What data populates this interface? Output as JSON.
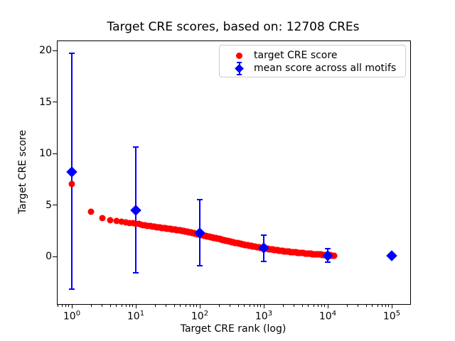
{
  "chart_data": {
    "type": "scatter",
    "title": "Target CRE scores, based on: 12708 CREs",
    "xlabel": "Target CRE rank (log)",
    "ylabel": "Target CRE score",
    "x_scale": "log",
    "xlim": [
      0.6,
      195000
    ],
    "ylim": [
      -4.6,
      20.9
    ],
    "x_tick_exponents": [
      0,
      1,
      2,
      3,
      4,
      5
    ],
    "y_ticks": [
      0,
      5,
      10,
      15,
      20
    ],
    "grid": false,
    "legend_position": "upper right",
    "colors": {
      "target": "#ff0000",
      "mean": "#0000ff",
      "text": "#000000",
      "legend_border": "#cccccc"
    },
    "n_points_total": 12708,
    "series": [
      {
        "name": "target CRE score",
        "type": "scatter",
        "marker": "circle",
        "color": "#ff0000",
        "note": "12708 points forming a dense decreasing band; sampled [rank, score] pairs, linear interp in log10(rank)",
        "points": [
          [
            1,
            7.03
          ],
          [
            2,
            4.37
          ],
          [
            3,
            3.74
          ],
          [
            4,
            3.52
          ],
          [
            5,
            3.43
          ],
          [
            6,
            3.36
          ],
          [
            7,
            3.31
          ],
          [
            8,
            3.26
          ],
          [
            9,
            3.22
          ],
          [
            10,
            3.18
          ],
          [
            12,
            3.1
          ],
          [
            15,
            3.0
          ],
          [
            20,
            2.88
          ],
          [
            30,
            2.72
          ],
          [
            40,
            2.61
          ],
          [
            50,
            2.52
          ],
          [
            70,
            2.35
          ],
          [
            100,
            2.12
          ],
          [
            140,
            1.92
          ],
          [
            200,
            1.7
          ],
          [
            300,
            1.44
          ],
          [
            400,
            1.27
          ],
          [
            500,
            1.14
          ],
          [
            700,
            0.96
          ],
          [
            1000,
            0.79
          ],
          [
            1500,
            0.63
          ],
          [
            2000,
            0.52
          ],
          [
            3000,
            0.4
          ],
          [
            4000,
            0.33
          ],
          [
            5000,
            0.27
          ],
          [
            7000,
            0.2
          ],
          [
            9000,
            0.15
          ],
          [
            11000,
            0.11
          ],
          [
            12708,
            0.07
          ]
        ]
      },
      {
        "name": "mean score across all motifs",
        "type": "errorbar",
        "marker": "diamond",
        "color": "#0000ff",
        "points": [
          {
            "x": 1,
            "y": 8.2,
            "lo": -3.2,
            "hi": 19.7
          },
          {
            "x": 10,
            "y": 4.5,
            "lo": -1.6,
            "hi": 10.6
          },
          {
            "x": 100,
            "y": 2.3,
            "lo": -0.9,
            "hi": 5.5
          },
          {
            "x": 1000,
            "y": 0.8,
            "lo": -0.45,
            "hi": 2.1
          },
          {
            "x": 10000,
            "y": 0.1,
            "lo": -0.55,
            "hi": 0.75
          },
          {
            "x": 100000,
            "y": 0.05,
            "lo": 0.05,
            "hi": 0.05
          }
        ]
      }
    ]
  }
}
